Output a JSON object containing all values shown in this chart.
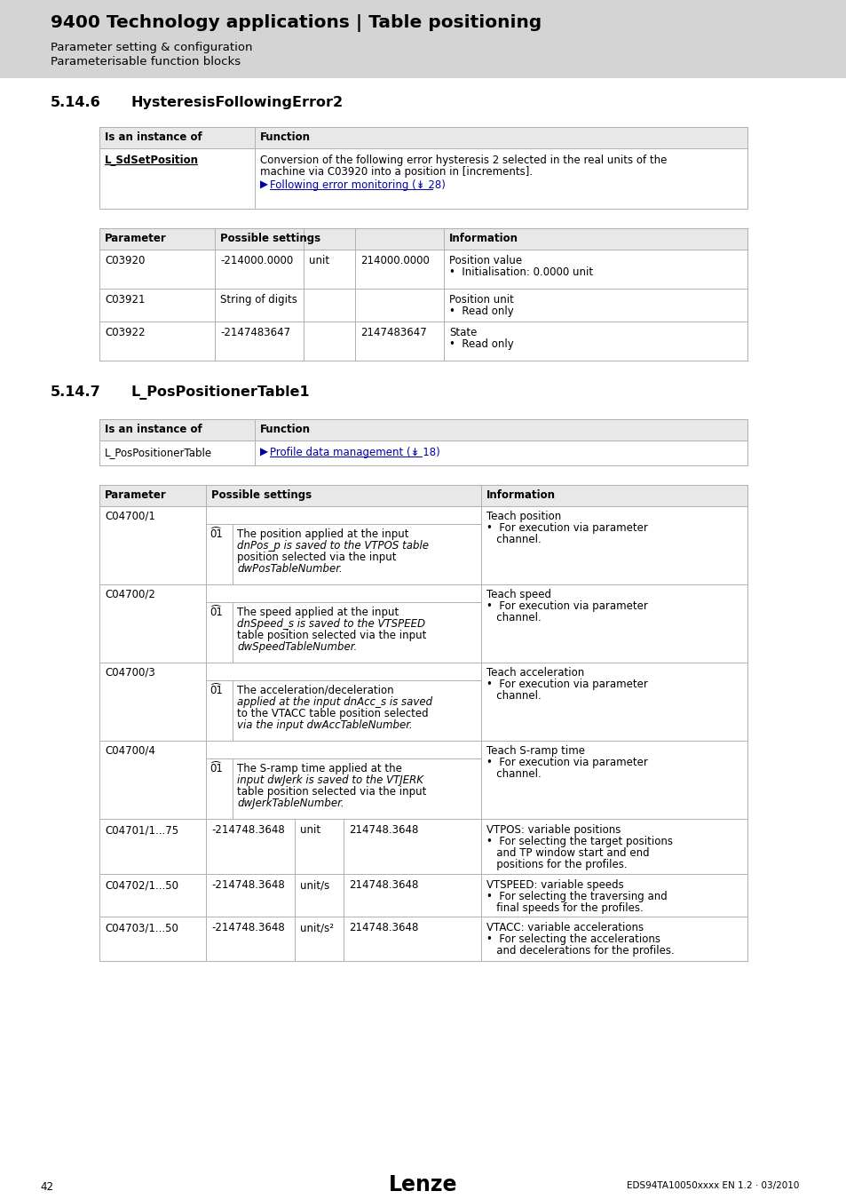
{
  "header_bg": "#d4d4d4",
  "header_title": "9400 Technology applications | Table positioning",
  "header_sub1": "Parameter setting & configuration",
  "header_sub2": "Parameterisable function blocks",
  "section1_num": "5.14.6",
  "section1_title": "HysteresisFollowingError2",
  "section2_num": "5.14.7",
  "section2_title": "L_PosPositionerTable1",
  "footer_page": "42",
  "footer_logo": "Lenze",
  "footer_doc": "EDS94TA10050xxxx EN 1.2 · 03/2010",
  "bg_color": "#ffffff",
  "table_header_bg": "#e8e8e8",
  "table_line_color": "#b0b0b0",
  "link_color": "#0000aa",
  "text_color": "#000000"
}
